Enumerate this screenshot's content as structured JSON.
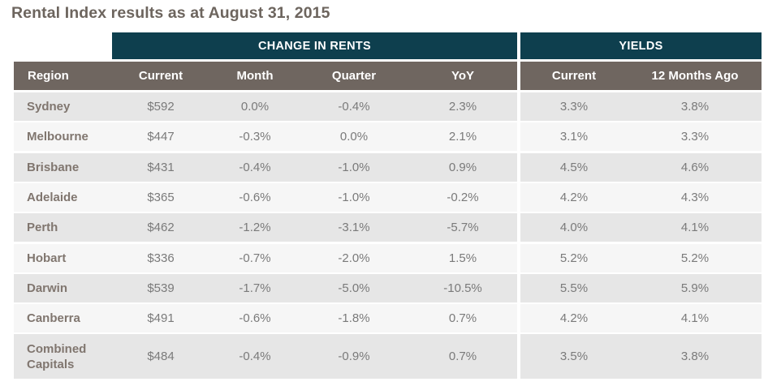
{
  "title": "Rental Index results as at August 31, 2015",
  "groups": {
    "change_in_rents": "CHANGE IN RENTS",
    "yields": "YIELDS"
  },
  "columns": [
    "Region",
    "Current",
    "Month",
    "Quarter",
    "YoY",
    "Current",
    "12 Months Ago"
  ],
  "rows": [
    {
      "region": "Sydney",
      "current": "$592",
      "month": "0.0%",
      "quarter": "-0.4%",
      "yoy": "2.3%",
      "yield_current": "3.3%",
      "yield_12m": "3.8%"
    },
    {
      "region": "Melbourne",
      "current": "$447",
      "month": "-0.3%",
      "quarter": "0.0%",
      "yoy": "2.1%",
      "yield_current": "3.1%",
      "yield_12m": "3.3%"
    },
    {
      "region": "Brisbane",
      "current": "$431",
      "month": "-0.4%",
      "quarter": "-1.0%",
      "yoy": "0.9%",
      "yield_current": "4.5%",
      "yield_12m": "4.6%"
    },
    {
      "region": "Adelaide",
      "current": "$365",
      "month": "-0.6%",
      "quarter": "-1.0%",
      "yoy": "-0.2%",
      "yield_current": "4.2%",
      "yield_12m": "4.3%"
    },
    {
      "region": "Perth",
      "current": "$462",
      "month": "-1.2%",
      "quarter": "-3.1%",
      "yoy": "-5.7%",
      "yield_current": "4.0%",
      "yield_12m": "4.1%"
    },
    {
      "region": "Hobart",
      "current": "$336",
      "month": "-0.7%",
      "quarter": "-2.0%",
      "yoy": "1.5%",
      "yield_current": "5.2%",
      "yield_12m": "5.2%"
    },
    {
      "region": "Darwin",
      "current": "$539",
      "month": "-1.7%",
      "quarter": "-5.0%",
      "yoy": "-10.5%",
      "yield_current": "5.5%",
      "yield_12m": "5.9%"
    },
    {
      "region": "Canberra",
      "current": "$491",
      "month": "-0.6%",
      "quarter": "-1.8%",
      "yoy": "0.7%",
      "yield_current": "4.2%",
      "yield_12m": "4.1%"
    },
    {
      "region": "Combined Capitals",
      "current": "$484",
      "month": "-0.4%",
      "quarter": "-0.9%",
      "yoy": "0.7%",
      "yield_current": "3.5%",
      "yield_12m": "3.8%"
    }
  ],
  "colors": {
    "group_header": "#0e3f4e",
    "column_header": "#6f6660",
    "row_odd": "#e6e6e6",
    "row_even": "#f6f6f6",
    "title": "#6d655e"
  }
}
